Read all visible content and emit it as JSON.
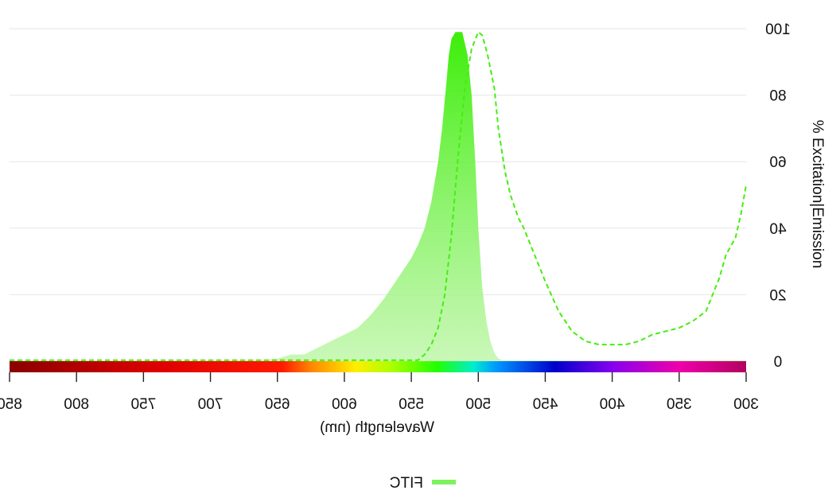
{
  "chart_data": {
    "type": "area",
    "x_axis": {
      "label": "Wavelength (nm)",
      "range": [
        300,
        850
      ],
      "reversed": true,
      "ticks": [
        850,
        800,
        750,
        700,
        650,
        600,
        550,
        500,
        450,
        400,
        350,
        300
      ],
      "tick_labels": [
        "850",
        "800",
        "750",
        "700",
        "650",
        "600",
        "550",
        "500",
        "450",
        "400",
        "350",
        "300"
      ],
      "tick_text_mirrored": true
    },
    "y_axis": {
      "label": "% Excitation|Emission",
      "range": [
        0,
        100
      ],
      "ticks": [
        0,
        20,
        40,
        60,
        80,
        100
      ],
      "tick_labels": [
        "0",
        "20",
        "40",
        "60",
        "80",
        "100"
      ],
      "position": "right"
    },
    "grid": true,
    "legend": {
      "position": "bottom-center",
      "entries": [
        "FITC"
      ]
    },
    "spectrum_bar": true,
    "series": [
      {
        "name": "FITC",
        "role": "emission",
        "style": "filled-area",
        "color": "#44ee11",
        "points": [
          [
            850,
            0.3
          ],
          [
            800,
            0.3
          ],
          [
            750,
            0.3
          ],
          [
            700,
            0.3
          ],
          [
            660,
            0.4
          ],
          [
            650,
            0.8
          ],
          [
            640,
            2
          ],
          [
            630,
            2
          ],
          [
            620,
            4
          ],
          [
            610,
            6
          ],
          [
            600,
            8
          ],
          [
            590,
            10
          ],
          [
            580,
            14
          ],
          [
            570,
            19
          ],
          [
            560,
            25
          ],
          [
            550,
            31
          ],
          [
            545,
            35
          ],
          [
            540,
            40
          ],
          [
            535,
            48
          ],
          [
            530,
            60
          ],
          [
            527,
            70
          ],
          [
            524,
            83
          ],
          [
            522,
            92
          ],
          [
            520,
            97
          ],
          [
            517,
            99
          ],
          [
            512,
            99
          ],
          [
            508,
            92
          ],
          [
            505,
            80
          ],
          [
            502,
            58
          ],
          [
            500,
            40
          ],
          [
            497,
            22
          ],
          [
            494,
            12
          ],
          [
            491,
            6
          ],
          [
            488,
            2.5
          ],
          [
            485,
            0.8
          ],
          [
            482,
            0.3
          ],
          [
            300,
            0.3
          ]
        ]
      },
      {
        "name": "FITC",
        "role": "excitation",
        "style": "dashed-line",
        "color": "#44ee11",
        "points": [
          [
            850,
            0.3
          ],
          [
            800,
            0.3
          ],
          [
            700,
            0.3
          ],
          [
            600,
            0.3
          ],
          [
            560,
            0.3
          ],
          [
            545,
            0.3
          ],
          [
            540,
            2
          ],
          [
            535,
            5
          ],
          [
            530,
            10
          ],
          [
            525,
            20
          ],
          [
            520,
            38
          ],
          [
            515,
            62
          ],
          [
            510,
            82
          ],
          [
            505,
            94
          ],
          [
            500,
            99
          ],
          [
            497,
            98
          ],
          [
            493,
            92
          ],
          [
            488,
            82
          ],
          [
            485,
            70
          ],
          [
            480,
            57
          ],
          [
            476,
            50
          ],
          [
            470,
            43
          ],
          [
            466,
            40
          ],
          [
            460,
            34
          ],
          [
            450,
            24
          ],
          [
            440,
            15
          ],
          [
            430,
            9
          ],
          [
            420,
            6
          ],
          [
            410,
            5
          ],
          [
            400,
            5
          ],
          [
            390,
            5
          ],
          [
            380,
            6
          ],
          [
            370,
            8
          ],
          [
            360,
            9
          ],
          [
            350,
            10
          ],
          [
            340,
            12
          ],
          [
            330,
            15
          ],
          [
            320,
            25
          ],
          [
            315,
            32
          ],
          [
            308,
            37
          ],
          [
            304,
            44
          ],
          [
            300,
            53
          ]
        ]
      }
    ]
  }
}
